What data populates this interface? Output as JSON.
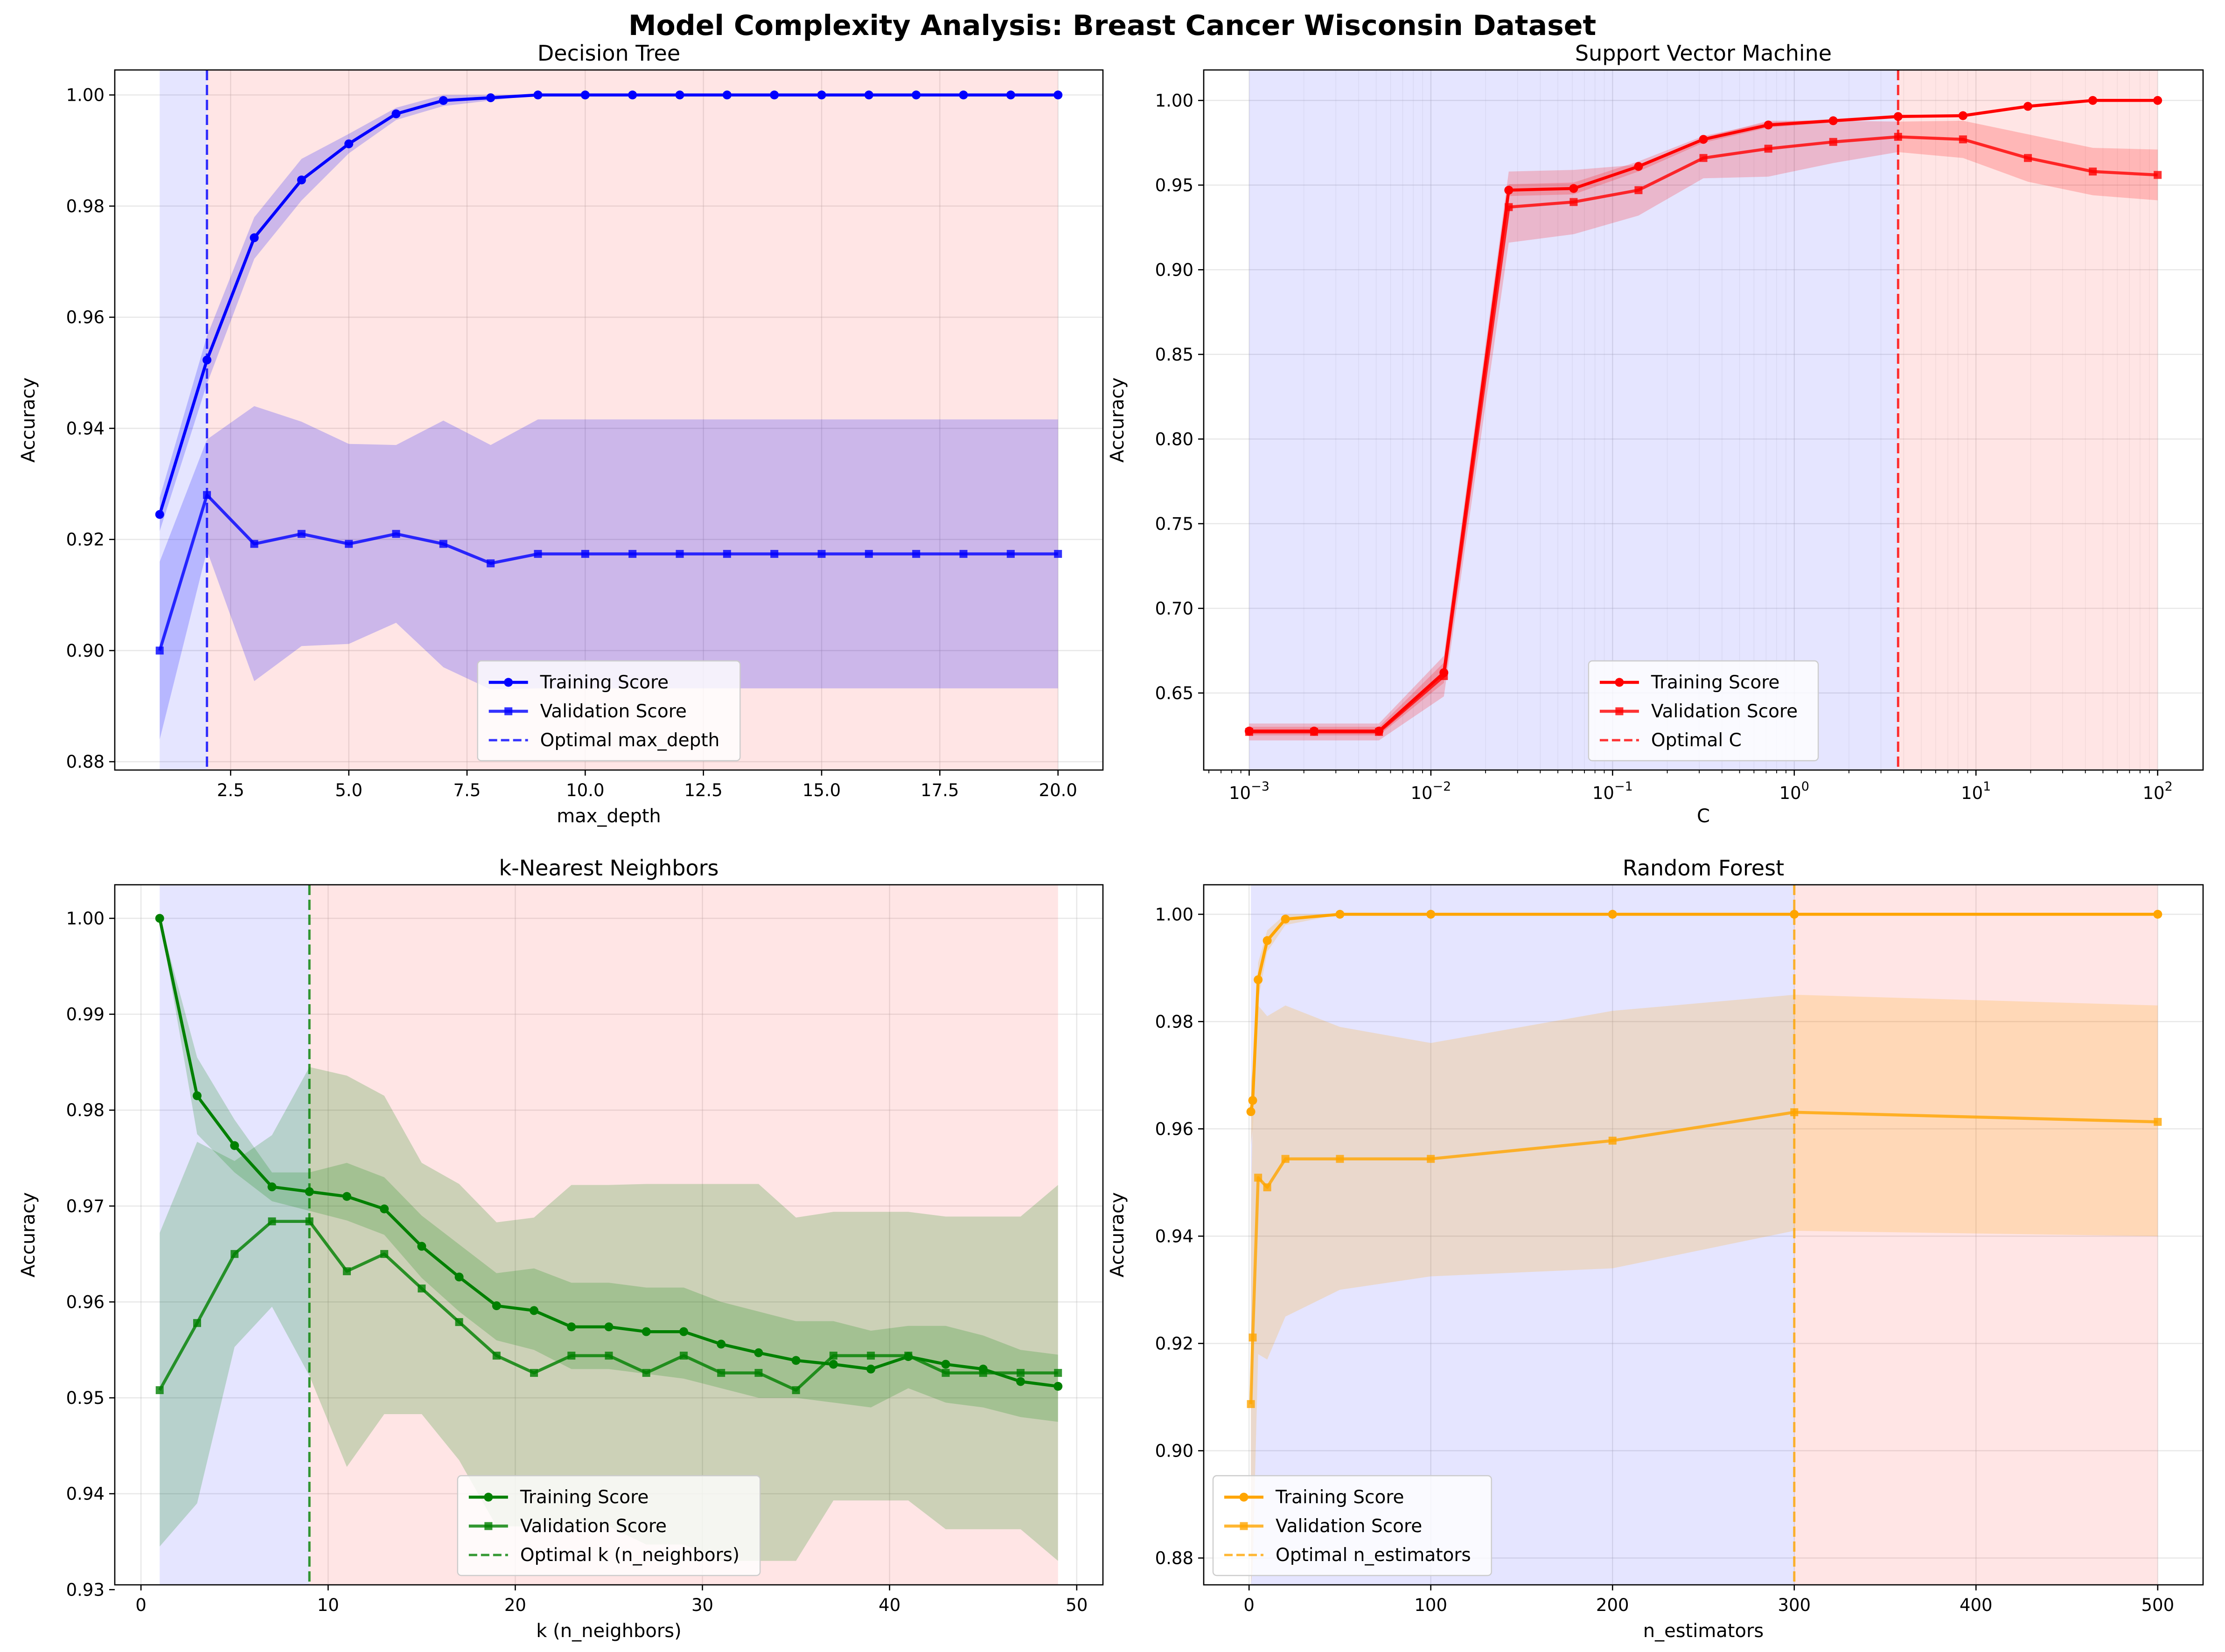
{
  "figure": {
    "title": "Model Complexity Analysis: Breast Cancer Wisconsin Dataset"
  },
  "chart_data": [
    {
      "type": "line",
      "title": "Decision Tree",
      "xlabel": "max_depth",
      "ylabel": "Accuracy",
      "xscale": "linear",
      "xlim": [
        0.05,
        20.95
      ],
      "ylim": [
        0.8785,
        1.0045
      ],
      "xticks": [
        2.5,
        5.0,
        7.5,
        10.0,
        12.5,
        15.0,
        17.5,
        20.0
      ],
      "xtick_labels": [
        "2.5",
        "5.0",
        "7.5",
        "10.0",
        "12.5",
        "15.0",
        "17.5",
        "20.0"
      ],
      "yticks": [
        0.88,
        0.9,
        0.92,
        0.94,
        0.96,
        0.98,
        1.0
      ],
      "ytick_labels": [
        "0.88",
        "0.90",
        "0.92",
        "0.94",
        "0.96",
        "0.98",
        "1.00"
      ],
      "color": "#0000ff",
      "x": [
        1,
        2,
        3,
        4,
        5,
        6,
        7,
        8,
        9,
        10,
        11,
        12,
        13,
        14,
        15,
        16,
        17,
        18,
        19,
        20
      ],
      "series": [
        {
          "name": "Training Score",
          "marker": "circle",
          "values": [
            0.9245,
            0.9523,
            0.9743,
            0.9847,
            0.9912,
            0.9966,
            0.999,
            0.9995,
            1.0,
            1.0,
            1.0,
            1.0,
            1.0,
            1.0,
            1.0,
            1.0,
            1.0,
            1.0,
            1.0,
            1.0
          ],
          "lower": [
            0.9215,
            0.948,
            0.9705,
            0.981,
            0.9895,
            0.9955,
            0.998,
            0.999,
            1.0,
            1.0,
            1.0,
            1.0,
            1.0,
            1.0,
            1.0,
            1.0,
            1.0,
            1.0,
            1.0,
            1.0
          ],
          "upper": [
            0.9275,
            0.9566,
            0.978,
            0.9885,
            0.993,
            0.9977,
            1.0,
            1.0,
            1.0,
            1.0,
            1.0,
            1.0,
            1.0,
            1.0,
            1.0,
            1.0,
            1.0,
            1.0,
            1.0,
            1.0
          ]
        },
        {
          "name": "Validation Score",
          "marker": "square",
          "values": [
            0.9,
            0.928,
            0.9192,
            0.921,
            0.9192,
            0.921,
            0.9192,
            0.9157,
            0.9174,
            0.9174,
            0.9174,
            0.9174,
            0.9174,
            0.9174,
            0.9174,
            0.9174,
            0.9174,
            0.9174,
            0.9174,
            0.9174
          ],
          "lower": [
            0.884,
            0.918,
            0.8945,
            0.9008,
            0.9012,
            0.905,
            0.897,
            0.893,
            0.8932,
            0.8932,
            0.8932,
            0.8932,
            0.8932,
            0.8932,
            0.8932,
            0.8932,
            0.8932,
            0.8932,
            0.8932,
            0.8932
          ],
          "upper": [
            0.916,
            0.938,
            0.944,
            0.9412,
            0.9372,
            0.937,
            0.9414,
            0.937,
            0.9416,
            0.9416,
            0.9416,
            0.9416,
            0.9416,
            0.9416,
            0.9416,
            0.9416,
            0.9416,
            0.9416,
            0.9416,
            0.9416
          ]
        }
      ],
      "optimal": {
        "name": "Optimal max_depth",
        "x": 2
      },
      "regions": {
        "underfit_color": "#0000ff",
        "overfit_color": "#ff0000",
        "x_start": 1,
        "x_end": 20
      },
      "grid": true,
      "legend_position": "lower center"
    },
    {
      "type": "line",
      "title": "Support Vector Machine",
      "xlabel": "C",
      "ylabel": "Accuracy",
      "xscale": "log",
      "xlim": [
        0.000562,
        177.8
      ],
      "ylim": [
        0.6045,
        1.018
      ],
      "xticks": [
        0.001,
        0.01,
        0.1,
        1,
        10,
        100
      ],
      "xtick_labels": [
        {
          "base": "10",
          "exp": "−3"
        },
        {
          "base": "10",
          "exp": "−2"
        },
        {
          "base": "10",
          "exp": "−1"
        },
        {
          "base": "10",
          "exp": "0"
        },
        {
          "base": "10",
          "exp": "1"
        },
        {
          "base": "10",
          "exp": "2"
        }
      ],
      "yticks": [
        0.65,
        0.7,
        0.75,
        0.8,
        0.85,
        0.9,
        0.95,
        1.0
      ],
      "ytick_labels": [
        "0.65",
        "0.70",
        "0.75",
        "0.80",
        "0.85",
        "0.90",
        "0.95",
        "1.00"
      ],
      "color": "#ff0000",
      "x": [
        0.001,
        0.00234,
        0.00546,
        0.01274,
        0.02976,
        0.06952,
        0.1624,
        0.3793,
        0.8859,
        2.069,
        4.833,
        11.29,
        26.37,
        61.58,
        100
      ],
      "x_plot": [
        0.001,
        0.002276,
        0.005179,
        0.01179,
        0.02683,
        0.06105,
        0.1389,
        0.3162,
        0.7197,
        1.638,
        3.728,
        8.483,
        19.31,
        43.94,
        100
      ],
      "series": [
        {
          "name": "Training Score",
          "marker": "circle",
          "values": [
            0.6275,
            0.6275,
            0.6275,
            0.662,
            0.947,
            0.948,
            0.961,
            0.977,
            0.9855,
            0.988,
            0.9905,
            0.991,
            0.9965,
            1.0,
            1.0
          ],
          "lower": [
            0.625,
            0.625,
            0.625,
            0.656,
            0.9435,
            0.9445,
            0.958,
            0.975,
            0.984,
            0.987,
            0.9895,
            0.9905,
            0.996,
            1.0,
            1.0
          ],
          "upper": [
            0.63,
            0.63,
            0.63,
            0.668,
            0.9505,
            0.9515,
            0.964,
            0.979,
            0.987,
            0.989,
            0.9915,
            0.9915,
            0.997,
            1.0,
            1.0
          ]
        },
        {
          "name": "Validation Score",
          "marker": "square",
          "values": [
            0.627,
            0.627,
            0.627,
            0.66,
            0.937,
            0.94,
            0.947,
            0.966,
            0.9715,
            0.9755,
            0.9785,
            0.977,
            0.966,
            0.958,
            0.956
          ],
          "lower": [
            0.622,
            0.622,
            0.622,
            0.648,
            0.916,
            0.921,
            0.932,
            0.954,
            0.955,
            0.963,
            0.9695,
            0.966,
            0.952,
            0.944,
            0.941
          ],
          "upper": [
            0.632,
            0.632,
            0.632,
            0.672,
            0.958,
            0.959,
            0.962,
            0.978,
            0.988,
            0.988,
            0.9875,
            0.988,
            0.98,
            0.972,
            0.971
          ]
        }
      ],
      "optimal": {
        "name": "Optimal C",
        "x": 3.728
      },
      "regions": {
        "underfit_color": "#0000ff",
        "overfit_color": "#ff0000",
        "x_start": 0.001,
        "x_end": 100
      },
      "grid": true,
      "legend_position": "lower center"
    },
    {
      "type": "line",
      "title": "k-Nearest Neighbors",
      "xlabel": "k (n_neighbors)",
      "ylabel": "Accuracy",
      "xscale": "linear",
      "xlim": [
        -1.4,
        51.4
      ],
      "ylim": [
        0.9305,
        1.0035
      ],
      "xticks": [
        0,
        10,
        20,
        30,
        40,
        50
      ],
      "xtick_labels": [
        "0",
        "10",
        "20",
        "30",
        "40",
        "50"
      ],
      "yticks": [
        0.93,
        0.94,
        0.95,
        0.96,
        0.97,
        0.98,
        0.99,
        1.0
      ],
      "ytick_labels": [
        "0.93",
        "0.94",
        "0.95",
        "0.96",
        "0.97",
        "0.98",
        "0.99",
        "1.00"
      ],
      "color": "#008000",
      "x": [
        1,
        3,
        5,
        7,
        9,
        11,
        13,
        15,
        17,
        19,
        21,
        23,
        25,
        27,
        29,
        31,
        33,
        35,
        37,
        39,
        41,
        43,
        45,
        47,
        49
      ],
      "series": [
        {
          "name": "Training Score",
          "marker": "circle",
          "values": [
            1.0,
            0.9815,
            0.9763,
            0.972,
            0.9715,
            0.971,
            0.9697,
            0.9658,
            0.9626,
            0.9596,
            0.9591,
            0.9574,
            0.9574,
            0.9569,
            0.9569,
            0.9556,
            0.9547,
            0.9539,
            0.9535,
            0.953,
            0.9543,
            0.9535,
            0.953,
            0.9517,
            0.9512
          ],
          "lower": [
            1.0,
            0.9775,
            0.9735,
            0.9705,
            0.9695,
            0.9685,
            0.967,
            0.9625,
            0.959,
            0.956,
            0.955,
            0.953,
            0.953,
            0.9525,
            0.952,
            0.951,
            0.95,
            0.95,
            0.9495,
            0.949,
            0.951,
            0.9495,
            0.949,
            0.948,
            0.9475
          ],
          "upper": [
            1.0,
            0.9855,
            0.979,
            0.9735,
            0.9735,
            0.9745,
            0.973,
            0.969,
            0.966,
            0.963,
            0.9635,
            0.962,
            0.962,
            0.9615,
            0.9615,
            0.96,
            0.959,
            0.958,
            0.958,
            0.957,
            0.9575,
            0.9575,
            0.9565,
            0.955,
            0.9545
          ]
        },
        {
          "name": "Validation Score",
          "marker": "square",
          "values": [
            0.9508,
            0.9578,
            0.965,
            0.9684,
            0.9684,
            0.9632,
            0.965,
            0.9614,
            0.9579,
            0.9544,
            0.9526,
            0.9544,
            0.9544,
            0.9526,
            0.9544,
            0.9526,
            0.9526,
            0.9508,
            0.9544,
            0.9544,
            0.9544,
            0.9526,
            0.9526,
            0.9526,
            0.9526
          ],
          "lower": [
            0.9345,
            0.939,
            0.9553,
            0.9595,
            0.9523,
            0.9428,
            0.9483,
            0.9483,
            0.9435,
            0.9366,
            0.9366,
            0.9366,
            0.9366,
            0.9347,
            0.9347,
            0.933,
            0.933,
            0.933,
            0.9393,
            0.9393,
            0.9393,
            0.9363,
            0.9363,
            0.9363,
            0.933
          ],
          "upper": [
            0.9672,
            0.9767,
            0.9747,
            0.9774,
            0.9845,
            0.9836,
            0.9815,
            0.9745,
            0.9723,
            0.9683,
            0.9688,
            0.9722,
            0.9722,
            0.9723,
            0.9723,
            0.9723,
            0.9723,
            0.9688,
            0.9694,
            0.9694,
            0.9694,
            0.9689,
            0.9689,
            0.9689,
            0.9722
          ]
        }
      ],
      "optimal": {
        "name": "Optimal k (n_neighbors)",
        "x": 9
      },
      "regions": {
        "underfit_color": "#0000ff",
        "overfit_color": "#ff0000",
        "x_start": 1,
        "x_end": 49
      },
      "grid": true,
      "legend_position": "lower center"
    },
    {
      "type": "line",
      "title": "Random Forest",
      "xlabel": "n_estimators",
      "ylabel": "Accuracy",
      "xscale": "linear",
      "xlim": [
        -24.95,
        524.95
      ],
      "ylim": [
        0.875,
        1.0055
      ],
      "xticks": [
        0,
        100,
        200,
        300,
        400,
        500
      ],
      "xtick_labels": [
        "0",
        "100",
        "200",
        "300",
        "400",
        "500"
      ],
      "yticks": [
        0.88,
        0.9,
        0.92,
        0.94,
        0.96,
        0.98,
        1.0
      ],
      "ytick_labels": [
        "0.88",
        "0.90",
        "0.92",
        "0.94",
        "0.96",
        "0.98",
        "1.00"
      ],
      "color": "#ffa500",
      "x": [
        1,
        2,
        5,
        10,
        20,
        50,
        100,
        200,
        300,
        500
      ],
      "series": [
        {
          "name": "Training Score",
          "marker": "circle",
          "values": [
            0.9632,
            0.9653,
            0.9878,
            0.9951,
            0.9991,
            1.0,
            1.0,
            1.0,
            1.0,
            1.0
          ],
          "lower": [
            0.957,
            0.96,
            0.984,
            0.993,
            0.998,
            1.0,
            1.0,
            1.0,
            1.0,
            1.0
          ],
          "upper": [
            0.969,
            0.971,
            0.991,
            0.997,
            1.0,
            1.0,
            1.0,
            1.0,
            1.0,
            1.0
          ]
        },
        {
          "name": "Validation Score",
          "marker": "square",
          "values": [
            0.9087,
            0.9211,
            0.9509,
            0.9491,
            0.9544,
            0.9544,
            0.9544,
            0.9578,
            0.9631,
            0.9613
          ],
          "lower": [
            0.875,
            0.878,
            0.918,
            0.917,
            0.925,
            0.93,
            0.9325,
            0.934,
            0.941,
            0.94
          ],
          "upper": [
            0.942,
            0.965,
            0.983,
            0.981,
            0.983,
            0.979,
            0.976,
            0.982,
            0.985,
            0.983
          ]
        }
      ],
      "optimal": {
        "name": "Optimal n_estimators",
        "x": 300
      },
      "regions": {
        "underfit_color": "#0000ff",
        "overfit_color": "#ff0000",
        "x_start": 1,
        "x_end": 500
      },
      "grid": true,
      "legend_position": "lower left"
    }
  ]
}
